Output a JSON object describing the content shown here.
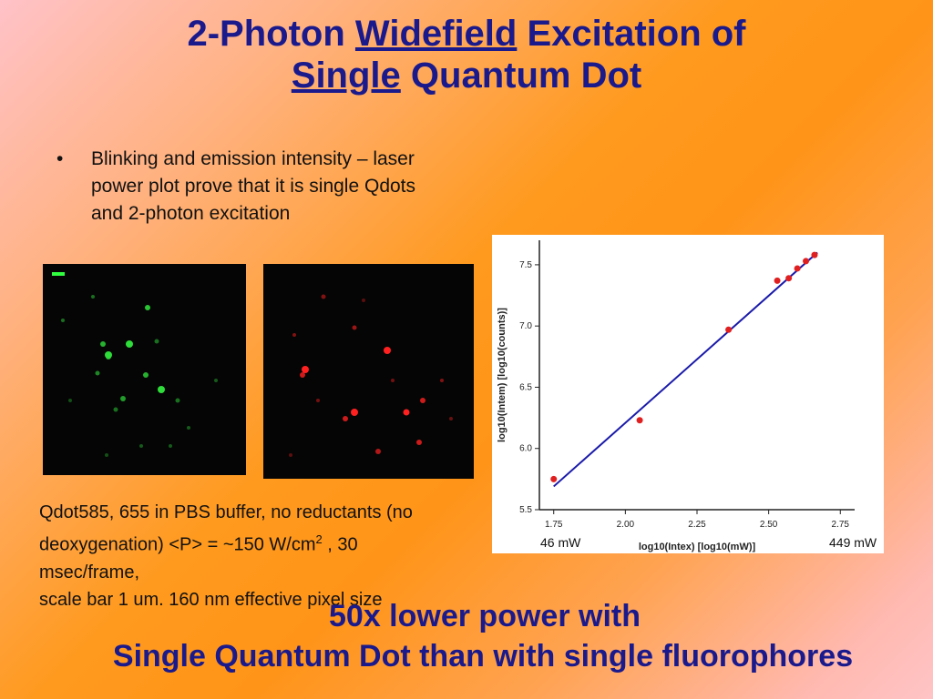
{
  "title": {
    "part1": "2-Photon",
    "part2": "Widefield",
    "part3": "Excitation of",
    "part4": "Single",
    "part5": "Quantum Dot"
  },
  "bullet": {
    "marker": "•",
    "text": "Blinking and emission intensity – laser power plot prove that it is single Qdots and 2-photon excitation"
  },
  "images": {
    "green_alt": "green fluorescence image of quantum dots",
    "red_alt": "red fluorescence image of quantum dots"
  },
  "caption": {
    "line1": "Qdot585, 655 in PBS buffer, no reductants (no deoxygenation) <P> = ~150 W/cm",
    "sup": "2",
    "line2": " , 30 msec/frame,",
    "line3": "scale bar 1 um. 160 nm effective pixel size"
  },
  "power_labels": {
    "low": "46 mW",
    "high": "449 mW"
  },
  "bottom": {
    "line1": "50x lower power with",
    "line2": "Single Quantum Dot than with single fluorophores"
  },
  "colors": {
    "title": "#1a1a8c",
    "fit_line": "#1a1aaa",
    "points": "#e02020"
  },
  "chart_data": {
    "type": "scatter",
    "xlabel": "log10(Intex) [log10(mW)]",
    "ylabel": "log10(Intem) [log10(counts)]",
    "xlim": [
      1.7,
      2.8
    ],
    "ylim": [
      5.5,
      7.7
    ],
    "x_ticks": [
      "1.75",
      "2.00",
      "2.25",
      "2.50",
      "2.75"
    ],
    "x_tick_values": [
      1.75,
      2.0,
      2.25,
      2.5,
      2.75
    ],
    "y_ticks": [
      "5.5",
      "6.0",
      "6.5",
      "7.0",
      "7.5"
    ],
    "y_tick_values": [
      5.5,
      6.0,
      6.5,
      7.0,
      7.5
    ],
    "points": [
      {
        "x": 1.75,
        "y": 5.75
      },
      {
        "x": 2.05,
        "y": 6.23
      },
      {
        "x": 2.36,
        "y": 6.97
      },
      {
        "x": 2.53,
        "y": 7.37
      },
      {
        "x": 2.57,
        "y": 7.39
      },
      {
        "x": 2.6,
        "y": 7.47
      },
      {
        "x": 2.63,
        "y": 7.53
      },
      {
        "x": 2.66,
        "y": 7.58
      }
    ],
    "fit": [
      {
        "x": 1.75,
        "y": 5.69
      },
      {
        "x": 2.67,
        "y": 7.6
      }
    ],
    "grid": false,
    "legend": "none"
  }
}
